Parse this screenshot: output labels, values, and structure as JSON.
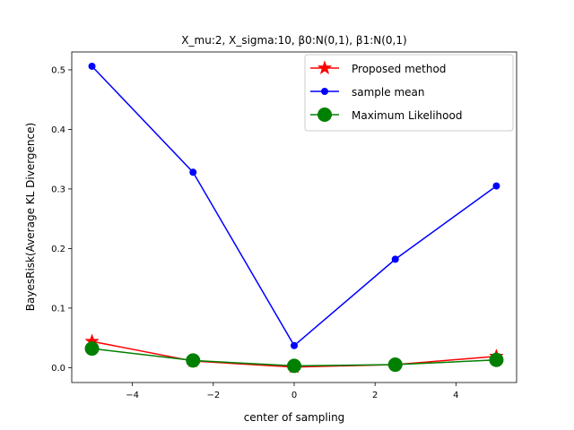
{
  "chart_data": {
    "type": "line",
    "title": "X_mu:2, X_sigma:10, β0:N(0,1), β1:N(0,1)",
    "xlabel": "center of sampling",
    "ylabel": "BayesRisk(Average KL Divergence)",
    "xlim": [
      -5.5,
      5.5
    ],
    "ylim": [
      -0.025,
      0.53
    ],
    "xticks": [
      -4,
      -2,
      0,
      2,
      4
    ],
    "xtick_labels": [
      "−4",
      "−2",
      "0",
      "2",
      "4"
    ],
    "yticks": [
      0.0,
      0.1,
      0.2,
      0.3,
      0.4,
      0.5
    ],
    "ytick_labels": [
      "0.0",
      "0.1",
      "0.2",
      "0.3",
      "0.4",
      "0.5"
    ],
    "grid": false,
    "legend_position": "top-right",
    "x": [
      -5,
      -2.5,
      0,
      2.5,
      5
    ],
    "series": [
      {
        "name": "Proposed method",
        "color": "#ff0000",
        "marker": "star",
        "values": [
          0.044,
          0.011,
          0.001,
          0.005,
          0.019
        ]
      },
      {
        "name": "sample mean",
        "color": "#0000ff",
        "marker": "circle",
        "values": [
          0.506,
          0.328,
          0.037,
          0.182,
          0.305
        ]
      },
      {
        "name": "Maximum Likelihood",
        "color": "#008000",
        "marker": "big-circle",
        "values": [
          0.032,
          0.012,
          0.003,
          0.005,
          0.013
        ]
      }
    ]
  }
}
